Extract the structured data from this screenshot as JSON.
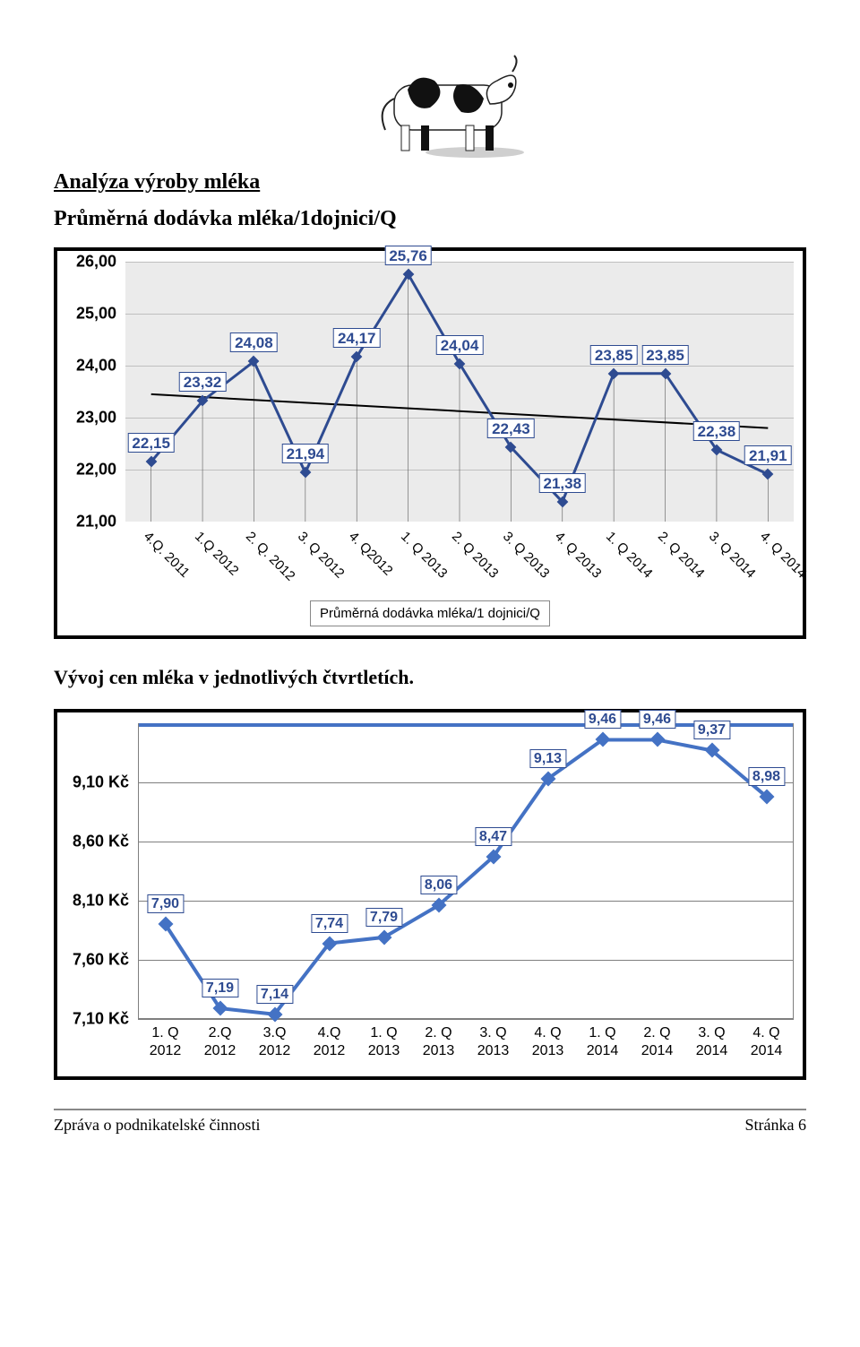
{
  "heading_main": "Analýza výroby mléka",
  "heading_chart1": "Průměrná dodávka mléka/1dojnici/Q",
  "heading_chart2": "Vývoj cen mléka v jednotlivých čtvrtletích.",
  "footer_left": "Zpráva o podnikatelské činnosti",
  "footer_right": "Stránka 6",
  "chart1": {
    "type": "line",
    "plot_bg": "#ebebeb",
    "grid_color": "#bfbfbf",
    "frame_border": "#000000",
    "line_color": "#2e4b91",
    "marker_type": "diamond",
    "marker_size": 9,
    "line_width": 3,
    "data_label_fontsize": 17,
    "ylabel_fontsize": 18,
    "xlabel_fontsize": 15,
    "trend_color": "#000000",
    "trend_width": 2,
    "trend_start_y": 23.45,
    "trend_end_y": 22.8,
    "ylim": [
      21.0,
      26.0
    ],
    "yticks": [
      21.0,
      22.0,
      23.0,
      24.0,
      25.0,
      26.0
    ],
    "ytick_labels": [
      "21,00",
      "22,00",
      "23,00",
      "24,00",
      "25,00",
      "26,00"
    ],
    "categories": [
      "4.Q. 2011",
      "1.Q 2012",
      "2. Q. 2012",
      "3. Q 2012",
      "4. Q2012",
      "1. Q 2013",
      "2. Q 2013",
      "3. Q 2013",
      "4. Q 2013",
      "1. Q 2014",
      "2. Q 2014",
      "3. Q 2014",
      "4. Q 2014"
    ],
    "values": [
      22.15,
      23.32,
      24.08,
      21.94,
      24.17,
      25.76,
      24.04,
      22.43,
      21.38,
      23.85,
      23.85,
      22.38,
      21.91
    ],
    "labels": [
      "22,15",
      "23,32",
      "24,08",
      "21,94",
      "24,17",
      "25,76",
      "24,04",
      "22,43",
      "21,38",
      "23,85",
      "23,85",
      "22,38",
      "21,91"
    ],
    "legend_text": "Průměrná dodávka mléka/1 dojnici/Q",
    "drop_lines": true,
    "drop_line_color": "#5b5b5b",
    "drop_line_width": 2
  },
  "chart2": {
    "type": "line",
    "plot_bg": "#ffffff",
    "grid_color": "#7f7f7f",
    "frame_border": "#000000",
    "inner_top_border": "#4472c4",
    "inner_top_border_width": 4,
    "line_color": "#4472c4",
    "marker_type": "diamond",
    "marker_size": 12,
    "line_width": 4,
    "data_label_fontsize": 16,
    "ylabel_fontsize": 18,
    "xlabel_fontsize": 16,
    "ylim": [
      7.1,
      9.6
    ],
    "yticks": [
      7.1,
      7.6,
      8.1,
      8.6,
      9.1
    ],
    "ytick_labels": [
      "7,10 Kč",
      "7,60 Kč",
      "8,10 Kč",
      "8,60 Kč",
      "9,10 Kč"
    ],
    "categories": [
      "1. Q 2012",
      "2.Q 2012",
      "3.Q 2012",
      "4.Q 2012",
      "1. Q 2013",
      "2. Q 2013",
      "3. Q 2013",
      "4. Q 2013",
      "1. Q 2014",
      "2. Q 2014",
      "3. Q 2014",
      "4. Q 2014"
    ],
    "values": [
      7.9,
      7.19,
      7.14,
      7.74,
      7.79,
      8.06,
      8.47,
      9.13,
      9.46,
      9.46,
      9.37,
      8.98
    ],
    "labels": [
      "7,90",
      "7,19",
      "7,14",
      "7,74",
      "7,79",
      "8,06",
      "8,47",
      "9,13",
      "9,46",
      "9,46",
      "9,37",
      "8,98"
    ]
  }
}
